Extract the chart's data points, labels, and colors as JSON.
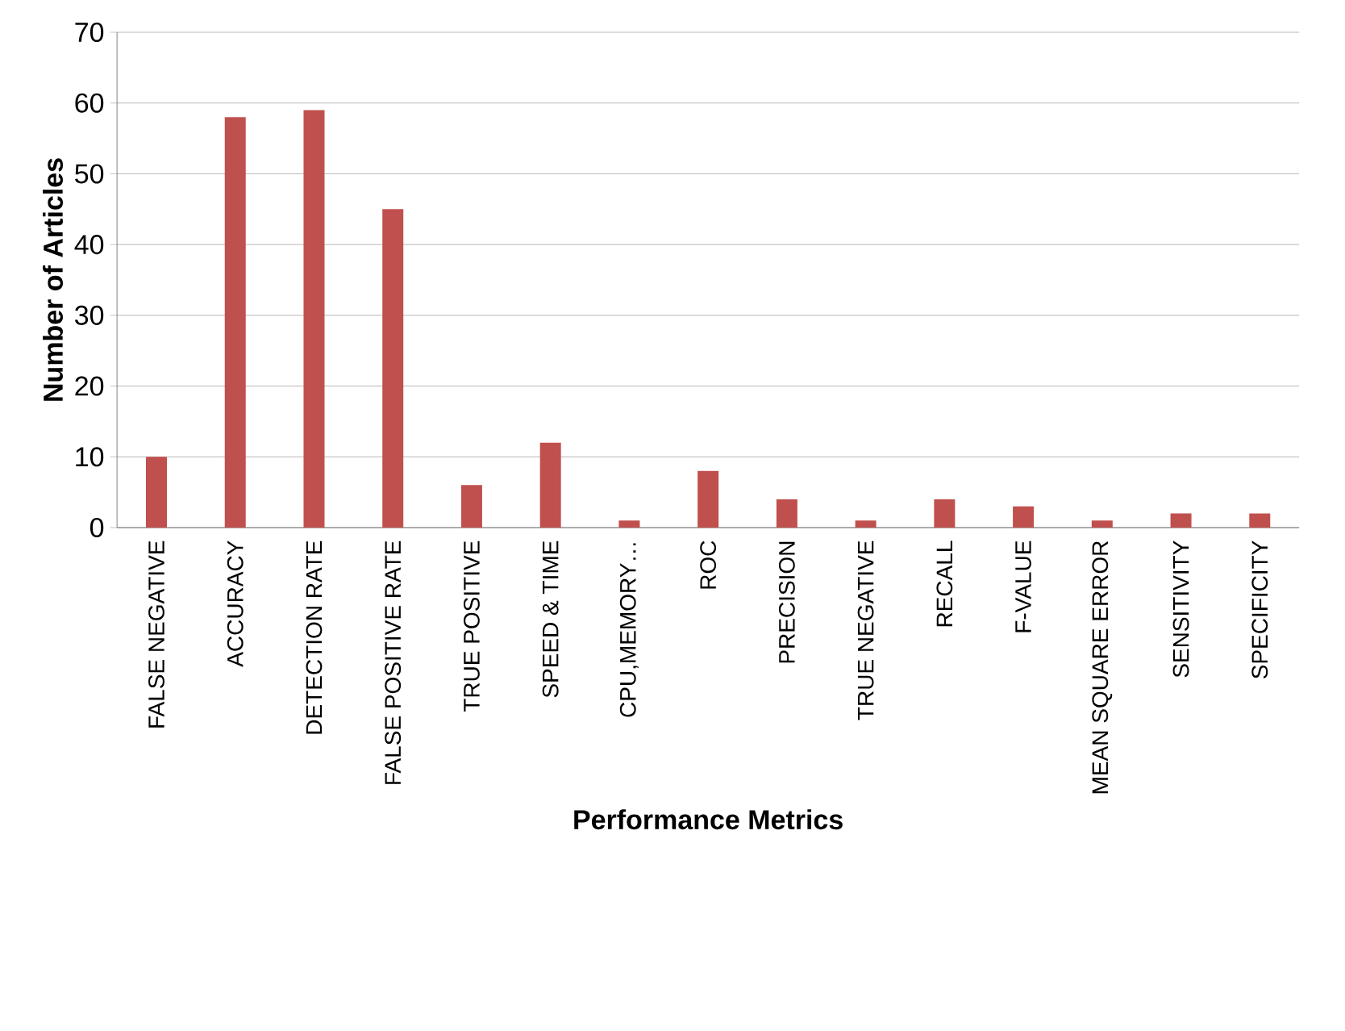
{
  "chart_data": {
    "type": "bar",
    "xlabel": "Performance Metrics",
    "ylabel": "Number of Articles",
    "categories": [
      "FALSE NEGATIVE",
      "ACCURACY",
      "DETECTION RATE",
      "FALSE POSITIVE RATE",
      "TRUE POSITIVE",
      "SPEED & TIME",
      "CPU,MEMORY…",
      "ROC",
      "PRECISION",
      "TRUE NEGATIVE",
      "RECALL",
      "F-VALUE",
      "MEAN SQUARE ERROR",
      "SENSITIVITY",
      "SPECIFICITY"
    ],
    "values": [
      10,
      58,
      59,
      45,
      6,
      12,
      1,
      8,
      4,
      1,
      4,
      3,
      1,
      2,
      2
    ],
    "color": "#c0504d",
    "ylim": [
      0,
      70
    ],
    "yticks": [
      0,
      10,
      20,
      30,
      40,
      50,
      60,
      70
    ],
    "grid": "y"
  }
}
